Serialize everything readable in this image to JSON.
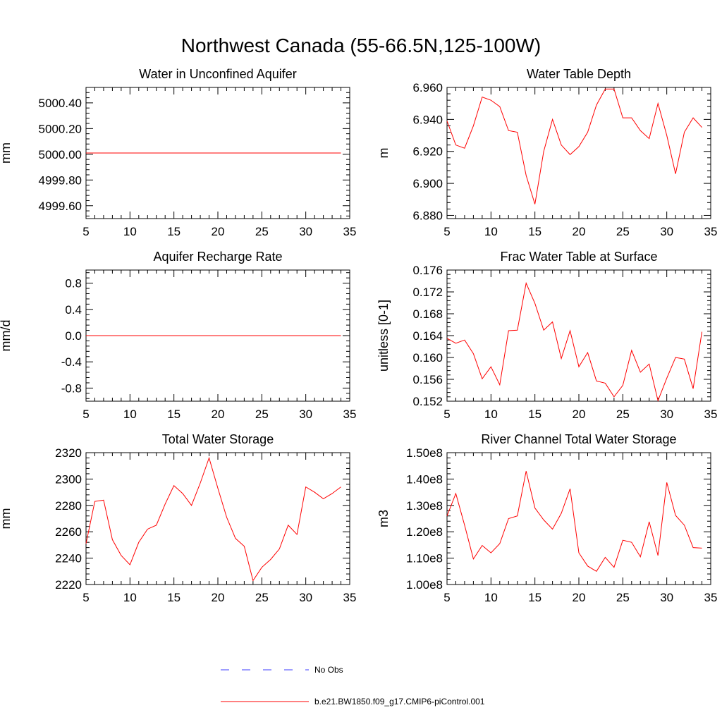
{
  "figure_title": "Northwest Canada (55-66.5N,125-100W)",
  "colors": {
    "model": "#ff0000",
    "obs": "#3d3dff",
    "axis": "#000000"
  },
  "legend": {
    "entries": [
      {
        "label": "No Obs",
        "style": "dashed",
        "color": "#3d3dff"
      },
      {
        "label": "b.e21.BW1850.f09_g17.CMIP6-piControl.001",
        "style": "solid",
        "color": "#ff0000"
      }
    ]
  },
  "chart_data": [
    {
      "type": "line",
      "title": "Water in Unconfined Aquifer",
      "ylabel": "mm",
      "xlim": [
        5,
        35
      ],
      "ylim": [
        4999.5,
        5000.52
      ],
      "xticks": [
        5,
        10,
        15,
        20,
        25,
        30,
        35
      ],
      "xtick_labels": [
        "5",
        "10",
        "15",
        "20",
        "25",
        "30",
        "35"
      ],
      "yticks": [
        4999.6,
        4999.8,
        5000.0,
        5000.2,
        5000.4
      ],
      "ytick_labels": [
        "4999.60",
        "4999.80",
        "5000.00",
        "5000.20",
        "5000.40"
      ],
      "x": [
        5,
        6,
        7,
        8,
        9,
        10,
        11,
        12,
        13,
        14,
        15,
        16,
        17,
        18,
        19,
        20,
        21,
        22,
        23,
        24,
        25,
        26,
        27,
        28,
        29,
        30,
        31,
        32,
        33,
        34
      ],
      "series": [
        {
          "name": "b.e21.BW1850.f09_g17.CMIP6-piControl.001",
          "values": [
            5000.01,
            5000.01,
            5000.01,
            5000.01,
            5000.01,
            5000.01,
            5000.01,
            5000.01,
            5000.01,
            5000.01,
            5000.01,
            5000.01,
            5000.01,
            5000.01,
            5000.01,
            5000.01,
            5000.01,
            5000.01,
            5000.01,
            5000.01,
            5000.01,
            5000.01,
            5000.01,
            5000.01,
            5000.01,
            5000.01,
            5000.01,
            5000.01,
            5000.01,
            5000.01
          ]
        }
      ]
    },
    {
      "type": "line",
      "title": "Water Table Depth",
      "ylabel": "m",
      "xlim": [
        5,
        35
      ],
      "ylim": [
        6.878,
        6.96
      ],
      "xticks": [
        5,
        10,
        15,
        20,
        25,
        30,
        35
      ],
      "xtick_labels": [
        "5",
        "10",
        "15",
        "20",
        "25",
        "30",
        "35"
      ],
      "yticks": [
        6.88,
        6.9,
        6.92,
        6.94,
        6.96
      ],
      "ytick_labels": [
        "6.880",
        "6.900",
        "6.920",
        "6.940",
        "6.960"
      ],
      "x": [
        5,
        6,
        7,
        8,
        9,
        10,
        11,
        12,
        13,
        14,
        15,
        16,
        17,
        18,
        19,
        20,
        21,
        22,
        23,
        24,
        25,
        26,
        27,
        28,
        29,
        30,
        31,
        32,
        33,
        34
      ],
      "series": [
        {
          "name": "b.e21.BW1850.f09_g17.CMIP6-piControl.001",
          "values": [
            6.939,
            6.924,
            6.922,
            6.936,
            6.954,
            6.952,
            6.948,
            6.933,
            6.932,
            6.905,
            6.887,
            6.92,
            6.94,
            6.924,
            6.918,
            6.923,
            6.932,
            6.949,
            6.959,
            6.959,
            6.941,
            6.941,
            6.933,
            6.928,
            6.95,
            6.93,
            6.906,
            6.932,
            6.941,
            6.935
          ]
        }
      ]
    },
    {
      "type": "line",
      "title": "Aquifer Recharge Rate",
      "ylabel": "mm/d",
      "xlim": [
        5,
        35
      ],
      "ylim": [
        -1.0,
        1.0
      ],
      "xticks": [
        5,
        10,
        15,
        20,
        25,
        30,
        35
      ],
      "xtick_labels": [
        "5",
        "10",
        "15",
        "20",
        "25",
        "30",
        "35"
      ],
      "yticks": [
        -0.8,
        -0.4,
        0.0,
        0.4,
        0.8
      ],
      "ytick_labels": [
        "-0.8",
        "-0.4",
        "0.0",
        "0.4",
        "0.8"
      ],
      "x": [
        5,
        6,
        7,
        8,
        9,
        10,
        11,
        12,
        13,
        14,
        15,
        16,
        17,
        18,
        19,
        20,
        21,
        22,
        23,
        24,
        25,
        26,
        27,
        28,
        29,
        30,
        31,
        32,
        33,
        34
      ],
      "series": [
        {
          "name": "b.e21.BW1850.f09_g17.CMIP6-piControl.001",
          "values": [
            0,
            0,
            0,
            0,
            0,
            0,
            0,
            0,
            0,
            0,
            0,
            0,
            0,
            0,
            0,
            0,
            0,
            0,
            0,
            0,
            0,
            0,
            0,
            0,
            0,
            0,
            0,
            0,
            0,
            0
          ]
        }
      ]
    },
    {
      "type": "line",
      "title": "Frac Water Table at Surface",
      "ylabel": "unitless [0-1]",
      "xlim": [
        5,
        35
      ],
      "ylim": [
        0.152,
        0.176
      ],
      "xticks": [
        5,
        10,
        15,
        20,
        25,
        30,
        35
      ],
      "xtick_labels": [
        "5",
        "10",
        "15",
        "20",
        "25",
        "30",
        "35"
      ],
      "yticks": [
        0.152,
        0.156,
        0.16,
        0.164,
        0.168,
        0.172,
        0.176
      ],
      "ytick_labels": [
        "0.152",
        "0.156",
        "0.160",
        "0.164",
        "0.168",
        "0.172",
        "0.176"
      ],
      "x": [
        5,
        6,
        7,
        8,
        9,
        10,
        11,
        12,
        13,
        14,
        15,
        16,
        17,
        18,
        19,
        20,
        21,
        22,
        23,
        24,
        25,
        26,
        27,
        28,
        29,
        30,
        31,
        32,
        33,
        34
      ],
      "series": [
        {
          "name": "b.e21.BW1850.f09_g17.CMIP6-piControl.001",
          "values": [
            0.1635,
            0.1626,
            0.1632,
            0.1607,
            0.1561,
            0.1583,
            0.155,
            0.1649,
            0.165,
            0.1736,
            0.1699,
            0.165,
            0.1665,
            0.1598,
            0.1649,
            0.1583,
            0.1609,
            0.1557,
            0.1553,
            0.1528,
            0.1549,
            0.1613,
            0.1573,
            0.1588,
            0.1521,
            0.1562,
            0.16,
            0.1597,
            0.1543,
            0.1647
          ]
        }
      ]
    },
    {
      "type": "line",
      "title": "Total Water Storage",
      "ylabel": "mm",
      "xlim": [
        5,
        35
      ],
      "ylim": [
        2220,
        2320
      ],
      "xticks": [
        5,
        10,
        15,
        20,
        25,
        30,
        35
      ],
      "xtick_labels": [
        "5",
        "10",
        "15",
        "20",
        "25",
        "30",
        "35"
      ],
      "yticks": [
        2220,
        2240,
        2260,
        2280,
        2300,
        2320
      ],
      "ytick_labels": [
        "2220",
        "2240",
        "2260",
        "2280",
        "2300",
        "2320"
      ],
      "x": [
        5,
        6,
        7,
        8,
        9,
        10,
        11,
        12,
        13,
        14,
        15,
        16,
        17,
        18,
        19,
        20,
        21,
        22,
        23,
        24,
        25,
        26,
        27,
        28,
        29,
        30,
        31,
        32,
        33,
        34
      ],
      "series": [
        {
          "name": "b.e21.BW1850.f09_g17.CMIP6-piControl.001",
          "values": [
            2251,
            2283,
            2284,
            2254,
            2242,
            2235,
            2252,
            2262,
            2265,
            2281,
            2295,
            2289,
            2280,
            2297,
            2316,
            2293,
            2271,
            2255,
            2249,
            2223,
            2233,
            2239,
            2247,
            2265,
            2258,
            2294,
            2290,
            2285,
            2289,
            2294
          ]
        }
      ]
    },
    {
      "type": "line",
      "title": "River Channel Total Water Storage",
      "ylabel": "m3",
      "xlim": [
        5,
        35
      ],
      "ylim": [
        100000000.0,
        150000000.0
      ],
      "xticks": [
        5,
        10,
        15,
        20,
        25,
        30,
        35
      ],
      "xtick_labels": [
        "5",
        "10",
        "15",
        "20",
        "25",
        "30",
        "35"
      ],
      "yticks": [
        100000000.0,
        110000000.0,
        120000000.0,
        130000000.0,
        140000000.0,
        150000000.0
      ],
      "ytick_labels": [
        "1.00e8",
        "1.10e8",
        "1.20e8",
        "1.30e8",
        "1.40e8",
        "1.50e8"
      ],
      "x": [
        5,
        6,
        7,
        8,
        9,
        10,
        11,
        12,
        13,
        14,
        15,
        16,
        17,
        18,
        19,
        20,
        21,
        22,
        23,
        24,
        25,
        26,
        27,
        28,
        29,
        30,
        31,
        32,
        33,
        34
      ],
      "series": [
        {
          "name": "b.e21.BW1850.f09_g17.CMIP6-piControl.001",
          "values": [
            126000000.0,
            134500000.0,
            122500000.0,
            109700000.0,
            114800000.0,
            112000000.0,
            115500000.0,
            125000000.0,
            126000000.0,
            143000000.0,
            129000000.0,
            124500000.0,
            121000000.0,
            127000000.0,
            136300000.0,
            112000000.0,
            107000000.0,
            105000000.0,
            110300000.0,
            106500000.0,
            116800000.0,
            116000000.0,
            110500000.0,
            123800000.0,
            111000000.0,
            138700000.0,
            126200000.0,
            122500000.0,
            114000000.0,
            113800000.0
          ]
        }
      ]
    }
  ]
}
